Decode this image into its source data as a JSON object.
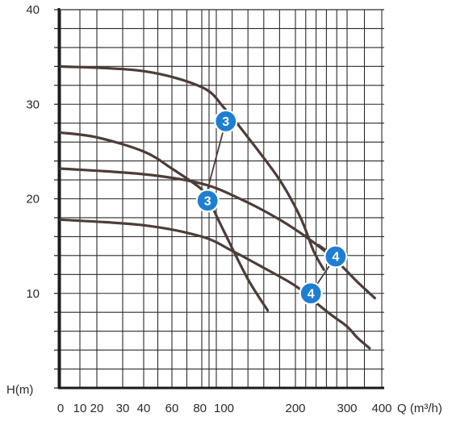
{
  "chart_data": {
    "type": "line",
    "x_axis": {
      "label": "Q (m³/h)",
      "ticks": [
        {
          "value": 0,
          "label": "0"
        },
        {
          "value": 10,
          "label": "10"
        },
        {
          "value": 20,
          "label": "20"
        },
        {
          "value": 30,
          "label": "30"
        },
        {
          "value": 40,
          "label": "40"
        },
        {
          "value": 60,
          "label": "60"
        },
        {
          "value": 80,
          "label": "80"
        },
        {
          "value": 100,
          "label": "100"
        },
        {
          "value": 200,
          "label": "200"
        },
        {
          "value": 300,
          "label": "300"
        },
        {
          "value": 400,
          "label": "400"
        }
      ],
      "gridlines": [
        0,
        10,
        20,
        30,
        40,
        50,
        60,
        70,
        80,
        90,
        100,
        120,
        140,
        160,
        180,
        200,
        220,
        240,
        260,
        280,
        300,
        350,
        400
      ]
    },
    "y_axis": {
      "label": "H(m)",
      "range": [
        0,
        40
      ],
      "ticks": [
        {
          "value": 10,
          "label": "10"
        },
        {
          "value": 20,
          "label": "20"
        },
        {
          "value": 30,
          "label": "30"
        },
        {
          "value": 40,
          "label": "40"
        }
      ],
      "grid_step": 2
    },
    "series": [
      {
        "name": "",
        "points": [
          [
            0,
            34.0
          ],
          [
            40,
            33.5
          ],
          [
            80,
            31.8
          ],
          [
            110,
            29.6
          ],
          [
            140,
            26.5
          ],
          [
            180,
            22.0
          ],
          [
            210,
            18.0
          ],
          [
            235,
            14.5
          ],
          [
            255,
            12.5
          ]
        ]
      },
      {
        "name": "",
        "points": [
          [
            0,
            27.0
          ],
          [
            20,
            26.5
          ],
          [
            40,
            25.0
          ],
          [
            60,
            23.2
          ],
          [
            80,
            21.0
          ],
          [
            90,
            19.8
          ],
          [
            110,
            16.5
          ],
          [
            140,
            11.5
          ],
          [
            165,
            8.2
          ]
        ]
      },
      {
        "name": "",
        "points": [
          [
            0,
            23.2
          ],
          [
            40,
            22.6
          ],
          [
            80,
            21.6
          ],
          [
            130,
            20.0
          ],
          [
            180,
            17.8
          ],
          [
            230,
            15.6
          ],
          [
            280,
            13.4
          ],
          [
            330,
            11.2
          ],
          [
            380,
            9.5
          ]
        ]
      },
      {
        "name": "",
        "points": [
          [
            0,
            17.8
          ],
          [
            40,
            17.2
          ],
          [
            80,
            16.0
          ],
          [
            120,
            14.5
          ],
          [
            160,
            12.7
          ],
          [
            200,
            10.8
          ],
          [
            240,
            9.0
          ],
          [
            270,
            7.7
          ],
          [
            300,
            6.5
          ],
          [
            330,
            5.3
          ],
          [
            365,
            4.2
          ]
        ]
      }
    ],
    "markers": [
      {
        "label": "3",
        "x": 112,
        "y": 28.2,
        "color": "#1e7fd0"
      },
      {
        "label": "3",
        "x": 88,
        "y": 19.8,
        "color": "#1e7fd0"
      },
      {
        "label": "4",
        "x": 278,
        "y": 13.9,
        "color": "#1e7fd0"
      },
      {
        "label": "4",
        "x": 230,
        "y": 10.0,
        "color": "#1e7fd0"
      }
    ],
    "marker_links": [
      {
        "from": [
          88,
          21.0
        ],
        "to": [
          112,
          28.2
        ]
      },
      {
        "from": [
          244,
          15.2
        ],
        "to": [
          278,
          13.9
        ]
      },
      {
        "from": [
          230,
          10.0
        ],
        "to": [
          278,
          13.9
        ]
      }
    ],
    "colors": {
      "curve": "#4d3d38",
      "grid": "#2a2a2a",
      "marker": "#1e7fd0"
    },
    "grid": true
  }
}
